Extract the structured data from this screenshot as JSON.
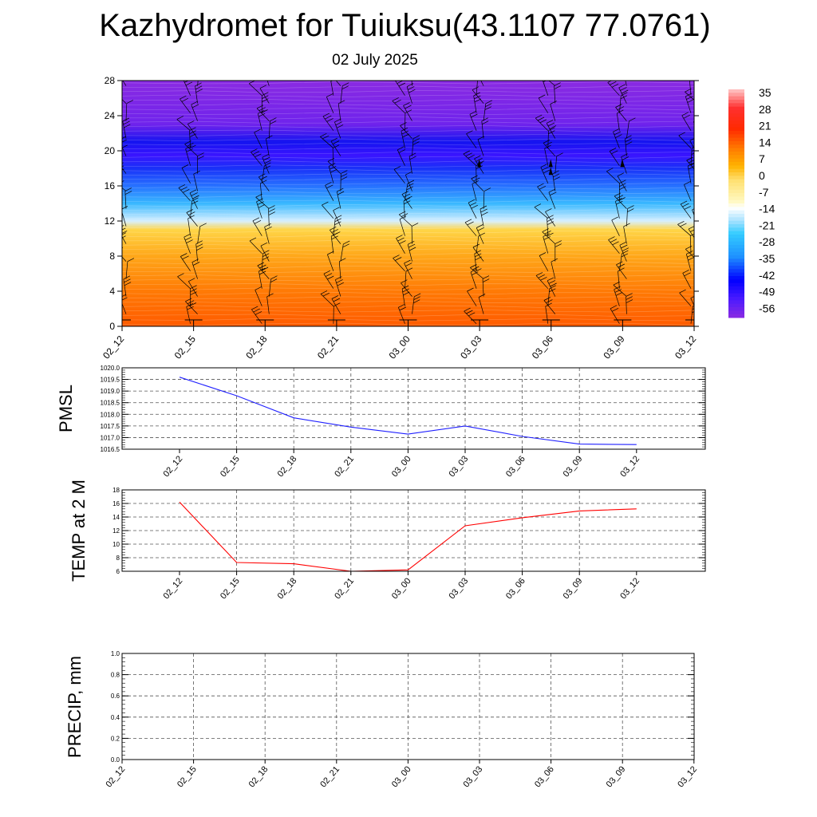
{
  "header": {
    "title": "Kazhydromet for Tuiuksu(43.1107 77.0761)",
    "subtitle": "02 July 2025"
  },
  "colors": {
    "pmsl_line": "#2020ff",
    "temp_line": "#ff0000",
    "precip_line": "#006400",
    "grid": "#555555",
    "wind_barb": "#000000"
  },
  "chart_data": [
    {
      "type": "heatmap",
      "title": "",
      "xlabel": "",
      "ylabel": "",
      "x": [
        "02_12",
        "02_15",
        "02_18",
        "02_21",
        "03_00",
        "03_03",
        "03_06",
        "03_09",
        "03_12"
      ],
      "yticks": [
        0,
        4,
        8,
        12,
        16,
        20,
        24,
        28
      ],
      "ylim": [
        0,
        28
      ],
      "temperature_profile": [
        {
          "level": 0,
          "value": 18
        },
        {
          "level": 4,
          "value": 14
        },
        {
          "level": 8,
          "value": 8
        },
        {
          "level": 11,
          "value": 1
        },
        {
          "level": 12,
          "value": -16
        },
        {
          "level": 14,
          "value": -26
        },
        {
          "level": 16,
          "value": -36
        },
        {
          "level": 18,
          "value": -46
        },
        {
          "level": 19.5,
          "value": -56
        },
        {
          "level": 21,
          "value": -50
        },
        {
          "level": 23,
          "value": -60
        },
        {
          "level": 28,
          "value": -62
        }
      ],
      "colorbar": {
        "labels": [
          "35",
          "28",
          "21",
          "14",
          "7",
          "0",
          "-7",
          "-14",
          "-21",
          "-28",
          "-35",
          "-42",
          "-49",
          "-56"
        ],
        "stops": [
          {
            "value": 38,
            "color": "#ffc8c8"
          },
          {
            "value": 30,
            "color": "#ff3030"
          },
          {
            "value": 21,
            "color": "#ff2a00"
          },
          {
            "value": 12,
            "color": "#ff7f00"
          },
          {
            "value": 5,
            "color": "#ffb300"
          },
          {
            "value": -1,
            "color": "#ffe070"
          },
          {
            "value": -10,
            "color": "#fff8c0"
          },
          {
            "value": -13,
            "color": "#ffffff"
          },
          {
            "value": -18,
            "color": "#b0e4ff"
          },
          {
            "value": -24,
            "color": "#33ccff"
          },
          {
            "value": -34,
            "color": "#1e90ff"
          },
          {
            "value": -44,
            "color": "#0000ff"
          },
          {
            "value": -52,
            "color": "#4a1aff"
          },
          {
            "value": -60,
            "color": "#8a2be2"
          }
        ]
      },
      "colormap": [
        {
          "value": 22,
          "color": "#ff3c00"
        },
        {
          "value": 16,
          "color": "#ff6a00"
        },
        {
          "value": 10,
          "color": "#ff9a10"
        },
        {
          "value": 4,
          "color": "#ffc02a"
        },
        {
          "value": 0,
          "color": "#ffdc50"
        },
        {
          "value": -14,
          "color": "#eef8ff"
        },
        {
          "value": -20,
          "color": "#a6dcff"
        },
        {
          "value": -26,
          "color": "#38b8ff"
        },
        {
          "value": -34,
          "color": "#2a7dff"
        },
        {
          "value": -42,
          "color": "#1e4dff"
        },
        {
          "value": -50,
          "color": "#1414f0"
        },
        {
          "value": -56,
          "color": "#3a14ff"
        },
        {
          "value": -62,
          "color": "#8a2be2"
        }
      ],
      "wind_barb_levels": [
        1,
        3,
        5,
        7,
        9,
        11,
        13,
        15,
        17,
        19,
        21,
        23,
        25,
        27
      ]
    },
    {
      "type": "line",
      "ylabel": "PMSL",
      "x": [
        "02_12",
        "02_15",
        "02_18",
        "02_21",
        "03_00",
        "03_03",
        "03_06",
        "03_09",
        "03_12"
      ],
      "series": [
        {
          "values": [
            1019.6,
            1018.8,
            1017.85,
            1017.45,
            1017.15,
            1017.5,
            1017.05,
            1016.72,
            1016.7
          ]
        }
      ],
      "ylim": [
        1016.5,
        1020.0
      ],
      "yticks": [
        "1016.5",
        "1017.0",
        "1017.5",
        "1018.0",
        "1018.5",
        "1019.0",
        "1019.5",
        "1020.0"
      ],
      "grid": true
    },
    {
      "type": "line",
      "ylabel": "TEMP at 2 M",
      "x": [
        "02_12",
        "02_15",
        "02_18",
        "02_21",
        "03_00",
        "03_03",
        "03_06",
        "03_09",
        "03_12"
      ],
      "series": [
        {
          "values": [
            16.2,
            7.3,
            7.1,
            6.0,
            6.2,
            12.7,
            13.9,
            14.9,
            15.2
          ]
        }
      ],
      "ylim": [
        6,
        18
      ],
      "yticks": [
        "6",
        "8",
        "10",
        "12",
        "14",
        "16",
        "18"
      ],
      "grid": true
    },
    {
      "type": "line",
      "ylabel": "PRECIP, mm",
      "x": [
        "02_12",
        "02_15",
        "02_18",
        "02_21",
        "03_00",
        "03_03",
        "03_06",
        "03_09",
        "03_12"
      ],
      "series": [
        {
          "values": [
            0,
            0,
            0,
            0,
            0,
            0,
            0,
            0,
            0
          ]
        }
      ],
      "ylim": [
        0,
        1
      ],
      "yticks": [
        "0.0",
        "0.2",
        "0.4",
        "0.6",
        "0.8",
        "1.0"
      ],
      "grid": true
    }
  ]
}
